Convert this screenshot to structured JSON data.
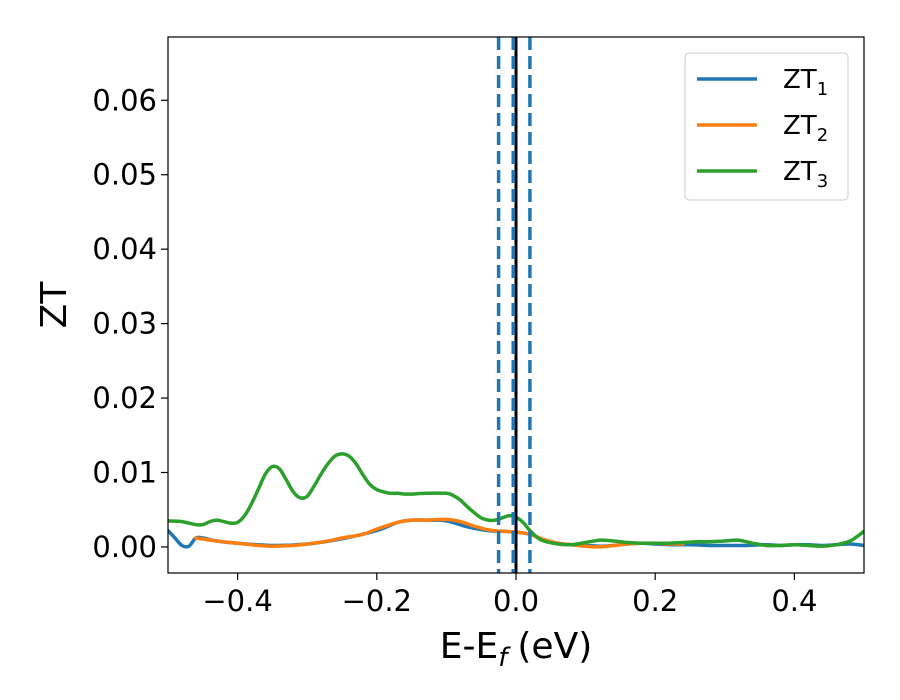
{
  "chart_data": {
    "type": "line",
    "xlabel": "E-E",
    "xlabel_sub": "f",
    "xlabel_unit": "(eV)",
    "ylabel": "ZT",
    "xlim": [
      -0.5,
      0.5
    ],
    "ylim": [
      -0.0035,
      0.0685
    ],
    "xticks": [
      -0.4,
      -0.2,
      0.0,
      0.2,
      0.4
    ],
    "xtick_labels": [
      "−0.4",
      "−0.2",
      "0.0",
      "0.2",
      "0.4"
    ],
    "yticks": [
      0.0,
      0.01,
      0.02,
      0.03,
      0.04,
      0.05,
      0.06
    ],
    "ytick_labels": [
      "0.00",
      "0.01",
      "0.02",
      "0.03",
      "0.04",
      "0.05",
      "0.06"
    ],
    "grid": false,
    "legend_position": "top-right",
    "series": [
      {
        "name": "ZT",
        "sub": "1",
        "color": "#1f77b4",
        "x": [
          -0.5,
          -0.49,
          -0.48,
          -0.47,
          -0.46,
          -0.45,
          -0.43,
          -0.4,
          -0.35,
          -0.3,
          -0.25,
          -0.2,
          -0.17,
          -0.15,
          -0.13,
          -0.1,
          -0.07,
          -0.04,
          -0.02,
          0.0,
          0.02,
          0.04,
          0.06,
          0.08,
          0.1,
          0.12,
          0.14,
          0.16,
          0.18,
          0.2,
          0.22,
          0.25,
          0.28,
          0.3,
          0.33,
          0.36,
          0.38,
          0.4,
          0.42,
          0.44,
          0.46,
          0.48,
          0.5
        ],
        "y": [
          0.0022,
          0.0012,
          0.0002,
          0.0001,
          0.0012,
          0.0012,
          0.0008,
          0.0005,
          0.0002,
          0.0004,
          0.0011,
          0.0022,
          0.0033,
          0.0036,
          0.0036,
          0.0035,
          0.0027,
          0.0022,
          0.0021,
          0.002,
          0.0017,
          0.001,
          0.0005,
          0.0003,
          0.0002,
          0.0001,
          0.0002,
          0.0004,
          0.0005,
          0.0004,
          0.0003,
          0.0003,
          0.0002,
          0.0002,
          0.0002,
          0.0003,
          0.0002,
          0.0003,
          0.0003,
          0.0002,
          0.0003,
          0.0004,
          0.0002
        ]
      },
      {
        "name": "ZT",
        "sub": "2",
        "color": "#ff7f0e",
        "x": [
          -0.46,
          -0.43,
          -0.4,
          -0.37,
          -0.35,
          -0.32,
          -0.3,
          -0.27,
          -0.25,
          -0.22,
          -0.2,
          -0.17,
          -0.15,
          -0.13,
          -0.1,
          -0.08,
          -0.06,
          -0.04,
          -0.02,
          0.0,
          0.02,
          0.04,
          0.06,
          0.08,
          0.1,
          0.12,
          0.14,
          0.16,
          0.18,
          0.2,
          0.22,
          0.24
        ],
        "y": [
          0.0012,
          0.0008,
          0.0005,
          0.0002,
          0.0001,
          0.0002,
          0.0004,
          0.0008,
          0.0012,
          0.0017,
          0.0024,
          0.0033,
          0.0036,
          0.0036,
          0.0037,
          0.0034,
          0.0028,
          0.0023,
          0.0021,
          0.002,
          0.0017,
          0.001,
          0.0005,
          0.0003,
          0.0001,
          0.0,
          0.0002,
          0.0004,
          0.0005,
          0.0005,
          0.0004,
          0.0004
        ]
      },
      {
        "name": "ZT",
        "sub": "3",
        "color": "#2ca02c",
        "x": [
          -0.5,
          -0.48,
          -0.46,
          -0.45,
          -0.44,
          -0.43,
          -0.42,
          -0.41,
          -0.4,
          -0.39,
          -0.38,
          -0.37,
          -0.36,
          -0.35,
          -0.34,
          -0.33,
          -0.32,
          -0.31,
          -0.3,
          -0.29,
          -0.28,
          -0.27,
          -0.26,
          -0.25,
          -0.24,
          -0.23,
          -0.22,
          -0.21,
          -0.2,
          -0.19,
          -0.18,
          -0.17,
          -0.16,
          -0.15,
          -0.13,
          -0.1,
          -0.09,
          -0.08,
          -0.07,
          -0.06,
          -0.05,
          -0.04,
          -0.03,
          -0.02,
          -0.01,
          0.0,
          0.01,
          0.02,
          0.03,
          0.04,
          0.06,
          0.08,
          0.1,
          0.12,
          0.14,
          0.16,
          0.18,
          0.2,
          0.22,
          0.24,
          0.26,
          0.28,
          0.3,
          0.32,
          0.34,
          0.36,
          0.38,
          0.4,
          0.42,
          0.44,
          0.46,
          0.48,
          0.5
        ],
        "y": [
          0.0035,
          0.0034,
          0.003,
          0.003,
          0.0034,
          0.0036,
          0.0034,
          0.0032,
          0.0033,
          0.0042,
          0.0058,
          0.0078,
          0.0098,
          0.0108,
          0.0105,
          0.009,
          0.0074,
          0.0066,
          0.0068,
          0.0082,
          0.0098,
          0.0112,
          0.0122,
          0.0125,
          0.0122,
          0.0112,
          0.0097,
          0.0084,
          0.0077,
          0.0074,
          0.0072,
          0.0072,
          0.0071,
          0.0071,
          0.0072,
          0.0072,
          0.0069,
          0.0063,
          0.0054,
          0.0046,
          0.0039,
          0.0036,
          0.0036,
          0.0039,
          0.0042,
          0.004,
          0.0033,
          0.0022,
          0.0013,
          0.0008,
          0.0004,
          0.0003,
          0.0006,
          0.0009,
          0.0008,
          0.0006,
          0.0005,
          0.0005,
          0.0005,
          0.0006,
          0.0007,
          0.0007,
          0.0008,
          0.0009,
          0.0005,
          0.0002,
          0.0002,
          0.0003,
          0.0002,
          0.0001,
          0.0003,
          0.0008,
          0.0021
        ]
      }
    ],
    "vlines": [
      {
        "x": -0.025,
        "style": "dashed",
        "color": "#1f77b4"
      },
      {
        "x": 0.0,
        "style": "solid",
        "color": "#000000"
      },
      {
        "x": 0.02,
        "style": "dashed",
        "color": "#1f77b4"
      },
      {
        "x": -0.004,
        "style": "dashed",
        "color": "#1f77b4"
      }
    ]
  }
}
